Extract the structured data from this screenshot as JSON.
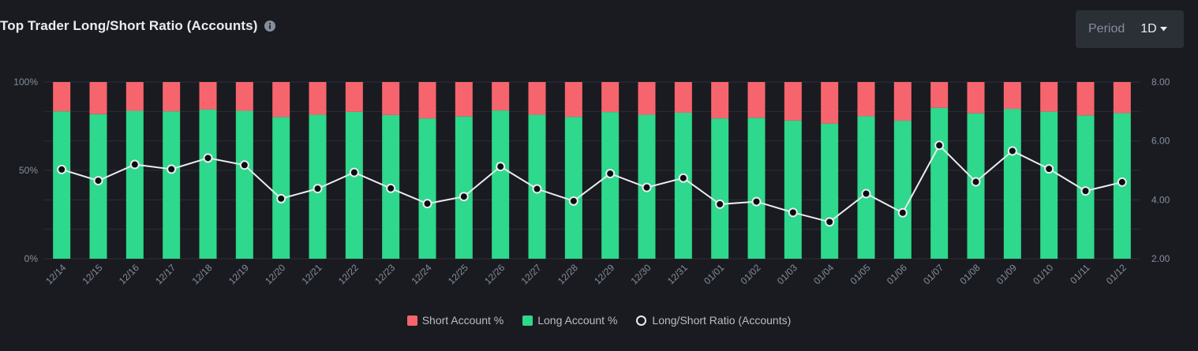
{
  "header": {
    "title": "Top Trader Long/Short Ratio (Accounts)",
    "info_icon": "info-icon"
  },
  "period": {
    "label": "Period",
    "value": "1D",
    "icon": "caret-down-icon"
  },
  "colors": {
    "short": "#f6656e",
    "long": "#2ed88c",
    "line": "#eaecef",
    "grid": "#2b2f36",
    "background": "#1a1b20"
  },
  "chart_data": {
    "type": "bar",
    "stacked": true,
    "categories": [
      "12/14",
      "12/15",
      "12/16",
      "12/17",
      "12/18",
      "12/19",
      "12/20",
      "12/21",
      "12/22",
      "12/23",
      "12/24",
      "12/25",
      "12/26",
      "12/27",
      "12/28",
      "12/29",
      "12/30",
      "12/31",
      "01/01",
      "01/02",
      "01/03",
      "01/04",
      "01/05",
      "01/06",
      "01/07",
      "01/08",
      "01/09",
      "01/10",
      "01/11",
      "01/12"
    ],
    "series": [
      {
        "name": "Short Account %",
        "type": "bar",
        "axis": "left",
        "color": "#f6656e",
        "values": [
          16.6,
          18.2,
          16.3,
          16.6,
          15.6,
          16.3,
          19.8,
          18.5,
          16.9,
          18.7,
          20.6,
          19.5,
          16.1,
          18.5,
          19.7,
          17.0,
          18.5,
          17.4,
          20.6,
          20.2,
          21.8,
          23.5,
          19.4,
          21.9,
          14.6,
          17.7,
          15.2,
          16.8,
          18.9,
          17.6
        ]
      },
      {
        "name": "Long Account %",
        "type": "bar",
        "axis": "left",
        "color": "#2ed88c",
        "values": [
          83.4,
          81.8,
          83.7,
          83.4,
          84.4,
          83.7,
          80.2,
          81.5,
          83.1,
          81.3,
          79.4,
          80.5,
          83.9,
          81.5,
          80.3,
          83.0,
          81.5,
          82.6,
          79.4,
          79.8,
          78.2,
          76.5,
          80.6,
          78.1,
          85.4,
          82.3,
          84.8,
          83.2,
          81.1,
          82.4
        ]
      },
      {
        "name": "Long/Short Ratio (Accounts)",
        "type": "line",
        "axis": "right",
        "color": "#eaecef",
        "values": [
          5.03,
          4.65,
          5.2,
          5.04,
          5.42,
          5.18,
          4.04,
          4.38,
          4.93,
          4.39,
          3.87,
          4.11,
          5.13,
          4.37,
          3.96,
          4.89,
          4.42,
          4.74,
          3.85,
          3.94,
          3.57,
          3.25,
          4.21,
          3.56,
          5.85,
          4.61,
          5.66,
          5.05,
          4.3,
          4.6
        ]
      }
    ],
    "y_left": {
      "ticks": [
        "100%",
        "50%",
        "0%"
      ],
      "range": [
        0,
        100
      ]
    },
    "y_right": {
      "ticks": [
        "8.00",
        "6.00",
        "4.00",
        "2.00"
      ],
      "range": [
        2,
        8
      ]
    },
    "grid": true,
    "legend": {
      "position": "bottom-center"
    }
  }
}
